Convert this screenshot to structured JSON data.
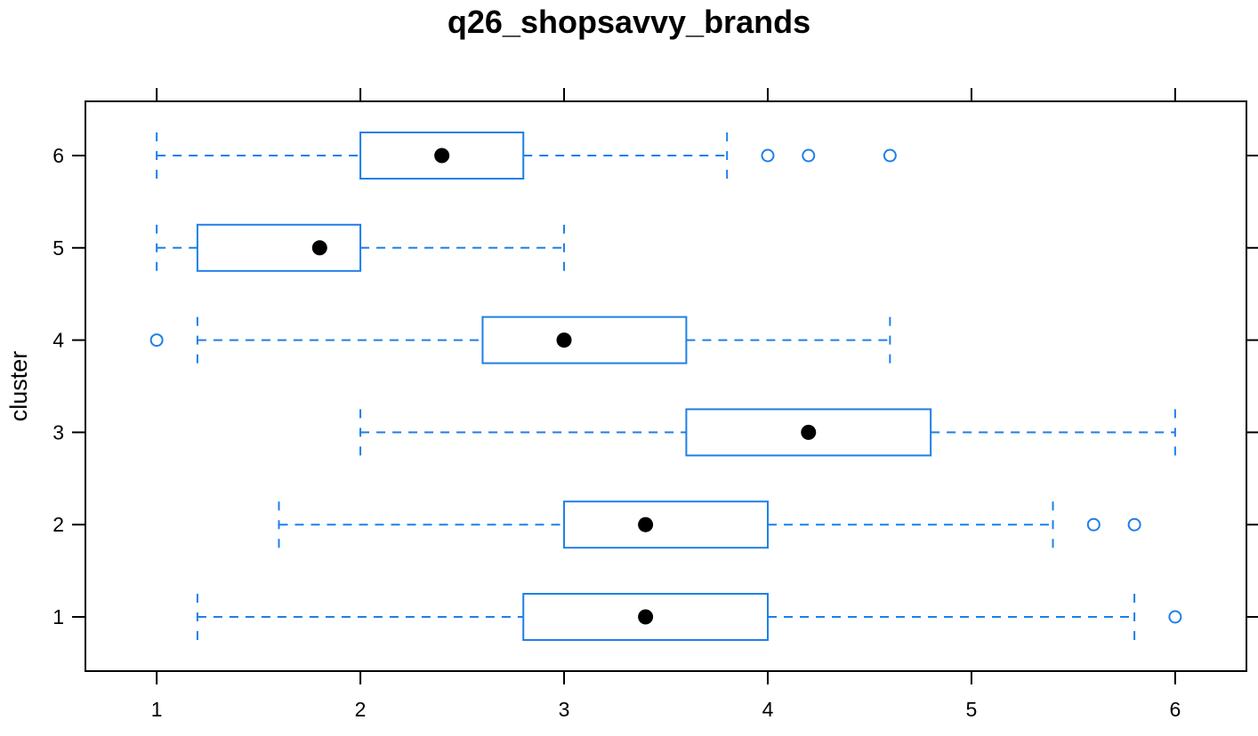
{
  "chart_data": {
    "type": "boxplot",
    "title": "q26_shopsavvy_brands",
    "xlabel": "",
    "ylabel": "cluster",
    "xlim": [
      0.65,
      6.35
    ],
    "xticks": [
      1,
      2,
      3,
      4,
      5,
      6
    ],
    "categories": [
      "1",
      "2",
      "3",
      "4",
      "5",
      "6"
    ],
    "grid": false,
    "colors": {
      "box": "#1f7fe8",
      "median": "#000000",
      "frame": "#000000"
    },
    "boxes": [
      {
        "cluster": "1",
        "whisker_low": 1.2,
        "q1": 2.8,
        "median": 3.4,
        "q3": 4.0,
        "whisker_high": 5.8,
        "outliers": [
          6.0
        ]
      },
      {
        "cluster": "2",
        "whisker_low": 1.6,
        "q1": 3.0,
        "median": 3.4,
        "q3": 4.0,
        "whisker_high": 5.4,
        "outliers": [
          5.6,
          5.8
        ]
      },
      {
        "cluster": "3",
        "whisker_low": 2.0,
        "q1": 3.6,
        "median": 4.2,
        "q3": 4.8,
        "whisker_high": 6.0,
        "outliers": []
      },
      {
        "cluster": "4",
        "whisker_low": 1.2,
        "q1": 2.6,
        "median": 3.0,
        "q3": 3.6,
        "whisker_high": 4.6,
        "outliers": [
          1.0
        ]
      },
      {
        "cluster": "5",
        "whisker_low": 1.0,
        "q1": 1.2,
        "median": 1.8,
        "q3": 2.0,
        "whisker_high": 3.0,
        "outliers": []
      },
      {
        "cluster": "6",
        "whisker_low": 1.0,
        "q1": 2.0,
        "median": 2.4,
        "q3": 2.8,
        "whisker_high": 3.8,
        "outliers": [
          4.0,
          4.2,
          4.6
        ]
      }
    ]
  }
}
